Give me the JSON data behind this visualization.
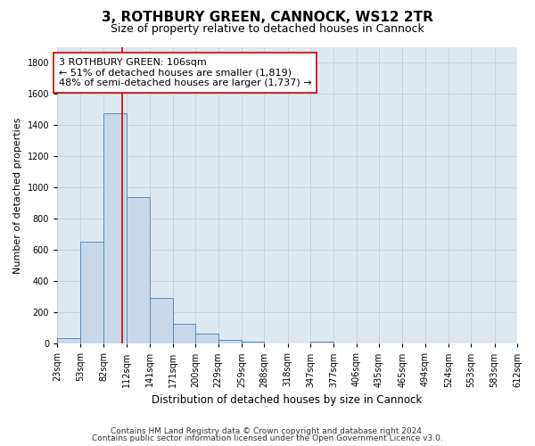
{
  "title_line1": "3, ROTHBURY GREEN, CANNOCK, WS12 2TR",
  "title_line2": "Size of property relative to detached houses in Cannock",
  "xlabel": "Distribution of detached houses by size in Cannock",
  "ylabel": "Number of detached properties",
  "footnote1": "Contains HM Land Registry data © Crown copyright and database right 2024.",
  "footnote2": "Contains public sector information licensed under the Open Government Licence v3.0.",
  "annotation_line1": "3 ROTHBURY GREEN: 106sqm",
  "annotation_line2": "← 51% of detached houses are smaller (1,819)",
  "annotation_line3": "48% of semi-detached houses are larger (1,737) →",
  "bar_edges": [
    23,
    53,
    82,
    112,
    141,
    171,
    200,
    229,
    259,
    288,
    318,
    347,
    377,
    406,
    435,
    465,
    494,
    524,
    553,
    583,
    612
  ],
  "bar_values": [
    38,
    650,
    1474,
    938,
    290,
    125,
    62,
    22,
    14,
    0,
    0,
    14,
    0,
    0,
    0,
    0,
    0,
    0,
    0,
    0
  ],
  "bar_color": "#c8d8e8",
  "bar_edge_color": "#5b8db8",
  "bar_linewidth": 0.7,
  "vline_x": 106,
  "vline_color": "#cc0000",
  "vline_linewidth": 1.2,
  "ylim": [
    0,
    1900
  ],
  "yticks": [
    0,
    200,
    400,
    600,
    800,
    1000,
    1200,
    1400,
    1600,
    1800
  ],
  "grid_color": "#cccccc",
  "fig_facecolor": "#ffffff",
  "axes_facecolor": "#dde8f0",
  "annotation_box_facecolor": "#ffffff",
  "annotation_box_edgecolor": "#cc0000",
  "title_fontsize": 11,
  "subtitle_fontsize": 9,
  "ylabel_fontsize": 8,
  "xlabel_fontsize": 8.5,
  "tick_fontsize": 7,
  "annotation_fontsize": 8,
  "footnote_fontsize": 6.5
}
